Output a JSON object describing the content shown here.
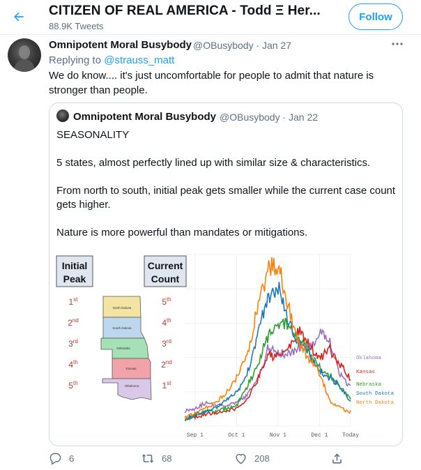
{
  "header": {
    "title": "CITIZEN OF REAL AMERICA - Todd Ξ Her...",
    "tweet_count": "88.9K Tweets",
    "follow_label": "Follow"
  },
  "tweet": {
    "name": "Omnipotent Moral Busybody",
    "handle_date": "@OBusybody · Jan 27",
    "replying_prefix": "Replying to",
    "replying_to": "@strauss_matt",
    "text": "We do know.... it's just uncomfortable for people to admit that nature is stronger than people."
  },
  "quote": {
    "name": "Omnipotent Moral Busybody",
    "handle_date": "@OBusybody · Jan 22",
    "paragraphs": [
      "SEASONALITY",
      "5 states, almost perfectly lined up with similar size & characteristics.",
      "From north to south, initial peak gets smaller while the current case count gets higher.",
      "Nature is more powerful than mandates or mitigations."
    ],
    "image": {
      "initial_peak_label": [
        "Initial",
        "Peak"
      ],
      "current_count_label": [
        "Current",
        "Count"
      ],
      "ranks": [
        {
          "num": "1",
          "sup": "st"
        },
        {
          "num": "2",
          "sup": "nd"
        },
        {
          "num": "3",
          "sup": "rd"
        },
        {
          "num": "4",
          "sup": "th"
        },
        {
          "num": "5",
          "sup": "th"
        }
      ],
      "ranks_right": [
        {
          "num": "5",
          "sup": "th"
        },
        {
          "num": "4",
          "sup": "th"
        },
        {
          "num": "3",
          "sup": "rd"
        },
        {
          "num": "2",
          "sup": "nd"
        },
        {
          "num": "1",
          "sup": "st"
        }
      ],
      "states": [
        "North Dakota",
        "South Dakota",
        "Nebraska",
        "Kansas",
        "Oklahoma"
      ]
    }
  },
  "chart_data": {
    "type": "line",
    "x_ticks": [
      "Sep 1",
      "Oct 1",
      "Nov 1",
      "Dec 1",
      "Today"
    ],
    "series": [
      {
        "name": "Oklahoma",
        "color": "#9b6fc4",
        "values": [
          12,
          14,
          18,
          17,
          16,
          18,
          24,
          36,
          60,
          58,
          56,
          62,
          60,
          74,
          67,
          40,
          30
        ]
      },
      {
        "name": "Kansas",
        "color": "#d3251f",
        "values": [
          6,
          7,
          9,
          10,
          12,
          14,
          20,
          36,
          56,
          54,
          60,
          74,
          64,
          52,
          60,
          48,
          36
        ]
      },
      {
        "name": "Nebraska",
        "color": "#2ca02c",
        "values": [
          5,
          8,
          12,
          11,
          14,
          16,
          30,
          48,
          70,
          82,
          78,
          68,
          58,
          46,
          40,
          30,
          22
        ]
      },
      {
        "name": "South Dakota",
        "color": "#1f77b4",
        "values": [
          5,
          9,
          12,
          14,
          20,
          26,
          40,
          72,
          100,
          110,
          82,
          64,
          56,
          44,
          38,
          30,
          20
        ]
      },
      {
        "name": "North Dakota",
        "color": "#ff7f0e",
        "values": [
          6,
          10,
          14,
          18,
          26,
          38,
          54,
          92,
          122,
          126,
          94,
          66,
          52,
          42,
          20,
          14,
          11
        ]
      }
    ]
  },
  "actions": {
    "reply_count": "6",
    "retweet_count": "68",
    "like_count": "208"
  },
  "colors": {
    "accent": "#1da1f2",
    "secondary_text": "#5b7083",
    "border": "#cfd9de",
    "rank_red": "#c0392b"
  }
}
